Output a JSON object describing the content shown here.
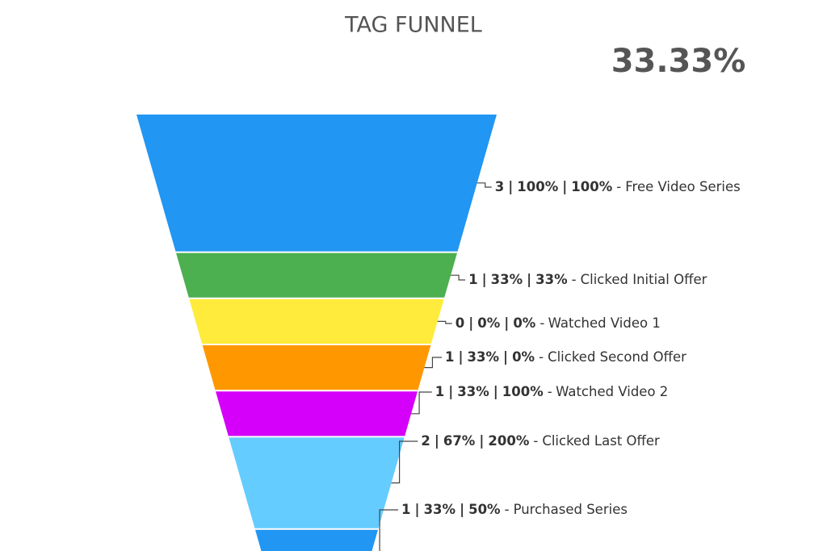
{
  "chart_data": {
    "type": "funnel",
    "title": "TAG FUNNEL",
    "headline": "33.33%",
    "categories": [
      "Free Video Series",
      "Clicked Initial Offer",
      "Watched Video 1",
      "Clicked Second Offer",
      "Watched Video 2",
      "Clicked Last Offer",
      "Purchased Series"
    ],
    "values": [
      3,
      1,
      0,
      1,
      1,
      2,
      1
    ],
    "pct_of_first": [
      "100%",
      "33%",
      "0%",
      "33%",
      "33%",
      "67%",
      "33%"
    ],
    "pct_of_previous": [
      "100%",
      "33%",
      "0%",
      "0%",
      "100%",
      "200%",
      "50%"
    ],
    "colors": [
      "#2196f3",
      "#4caf50",
      "#ffeb3b",
      "#ff9800",
      "#d500f9",
      "#64ccff"
    ],
    "separator": "|",
    "name_separator": "-"
  }
}
